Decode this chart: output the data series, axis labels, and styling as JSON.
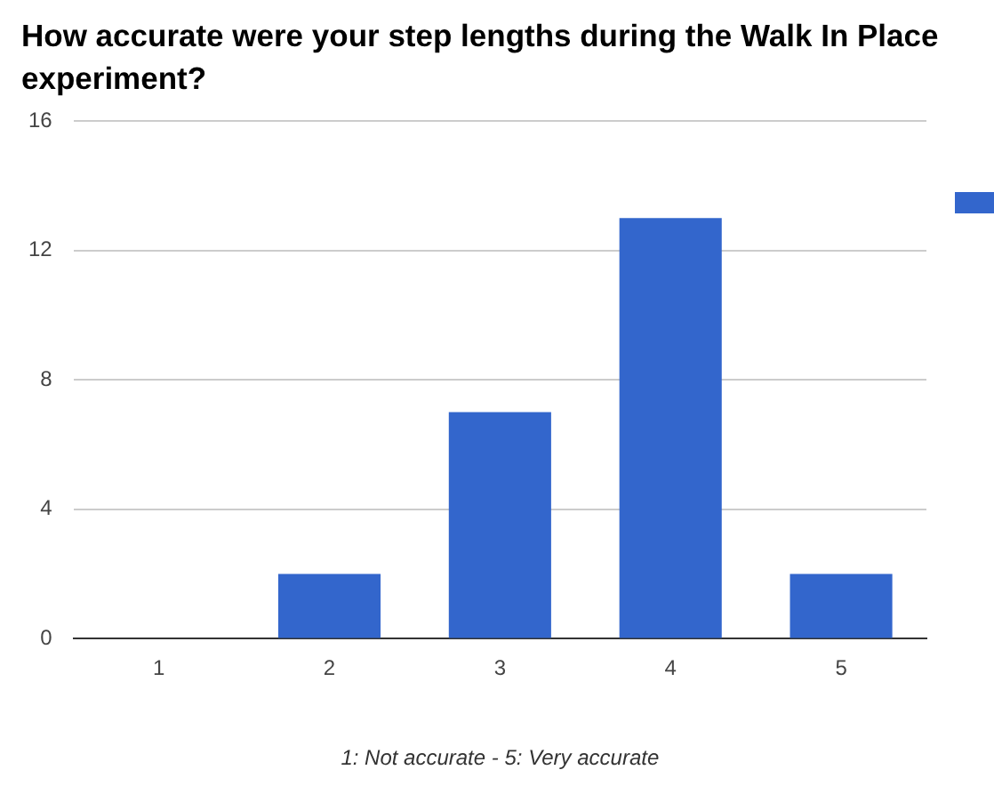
{
  "chart_data": {
    "type": "bar",
    "title": "How accurate were your step lengths during the Walk In Place experiment?",
    "xlabel": "1: Not accurate - 5: Very accurate",
    "categories": [
      "1",
      "2",
      "3",
      "4",
      "5"
    ],
    "series": [
      {
        "color": "#3366cc",
        "values": [
          0,
          2,
          7,
          13,
          2
        ]
      }
    ],
    "ylim": [
      0,
      16
    ],
    "yticks": [
      0,
      4,
      8,
      12,
      16
    ],
    "grid": "y"
  }
}
